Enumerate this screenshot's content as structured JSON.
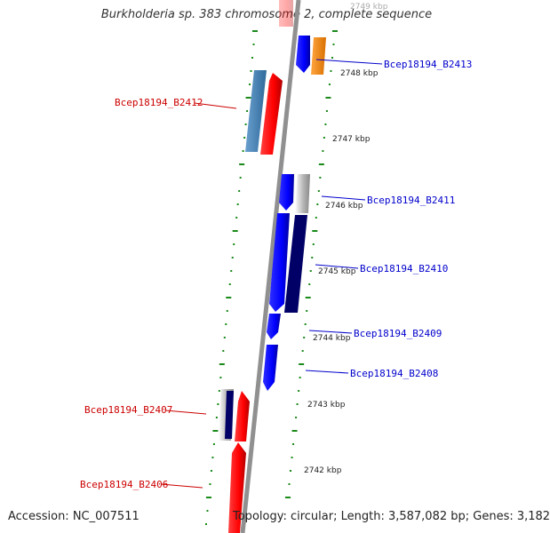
{
  "title": "Burkholderia sp. 383 chromosome 2, complete sequence",
  "accession": "Accession: NC_007511",
  "genome_info": "Topology: circular; Length: 3,587,082 bp; Genes: 3,182",
  "colors": {
    "backbone": "#909090",
    "tick": "#1a8a1a",
    "left_label": "#cc0000",
    "right_label": "#0000cc",
    "red_gene": "#ff0000",
    "blue_gene": "#0000ff",
    "navy_gene": "#000066",
    "steel_gene": "#4682b4",
    "orange_gene": "#ff8c00",
    "grey_gene": "#bbbbbb"
  },
  "kbp_labels": [
    "2749 kbp",
    "2748 kbp",
    "2747 kbp",
    "2746 kbp",
    "2745 kbp",
    "2744 kbp",
    "2743 kbp",
    "2742 kbp"
  ],
  "genes": [
    {
      "name": "Bcep18194_B2413",
      "side": "right",
      "strand": "reverse",
      "colors": [
        "blue_gene",
        "orange_gene"
      ]
    },
    {
      "name": "Bcep18194_B2412",
      "side": "left",
      "strand": "forward",
      "colors": [
        "steel_gene",
        "red_gene"
      ]
    },
    {
      "name": "Bcep18194_B2411",
      "side": "right",
      "strand": "reverse",
      "colors": [
        "blue_gene",
        "grey_gene"
      ]
    },
    {
      "name": "Bcep18194_B2410",
      "side": "right",
      "strand": "reverse",
      "colors": [
        "blue_gene",
        "navy_gene"
      ]
    },
    {
      "name": "Bcep18194_B2409",
      "side": "right",
      "strand": "reverse",
      "colors": [
        "blue_gene"
      ]
    },
    {
      "name": "Bcep18194_B2408",
      "side": "right",
      "strand": "reverse",
      "colors": [
        "blue_gene"
      ]
    },
    {
      "name": "Bcep18194_B2407",
      "side": "left",
      "strand": "forward",
      "colors": [
        "grey_gene",
        "navy_gene",
        "red_gene"
      ]
    },
    {
      "name": "Bcep18194_B2406",
      "side": "left",
      "strand": "forward",
      "colors": [
        "red_gene"
      ]
    }
  ]
}
